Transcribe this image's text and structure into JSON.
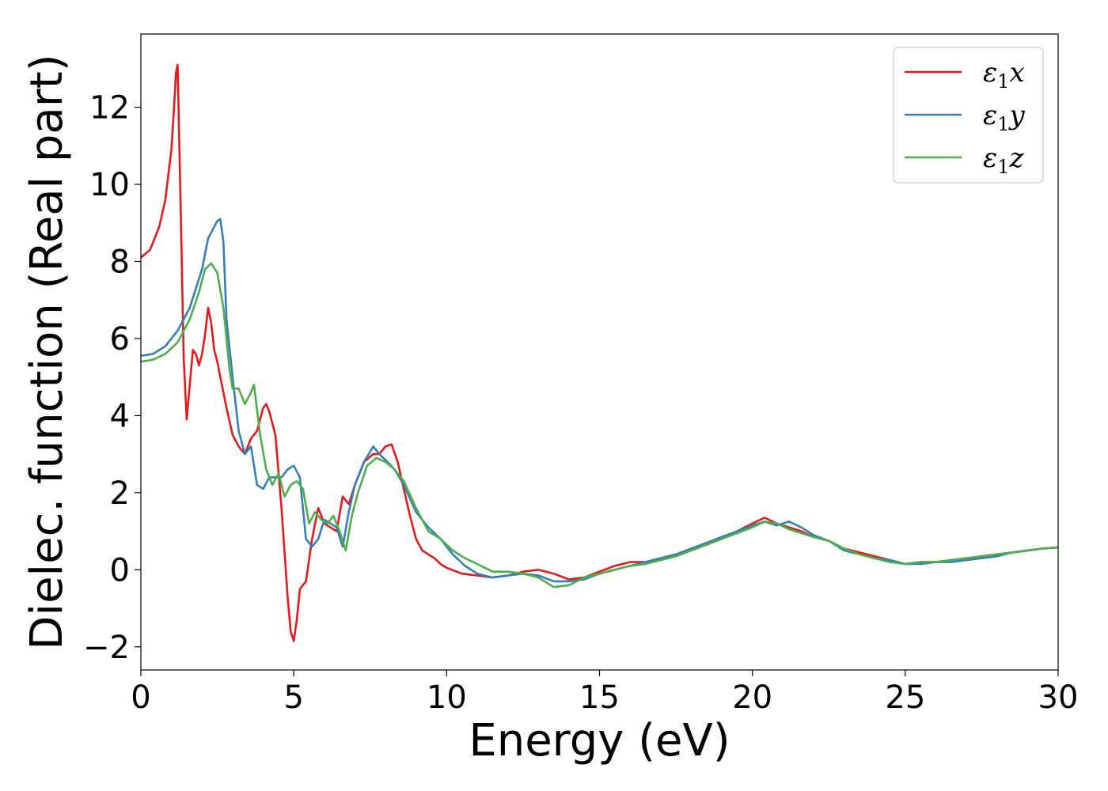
{
  "chart_data": {
    "type": "line",
    "xlabel": "Energy (eV)",
    "ylabel": "Dielec. function (Real part)",
    "xlim": [
      0,
      30
    ],
    "ylim": [
      -2.6,
      13.9
    ],
    "xticks": [
      0,
      5,
      10,
      15,
      20,
      25,
      30
    ],
    "xtick_labels": [
      "0",
      "5",
      "10",
      "15",
      "20",
      "25",
      "30"
    ],
    "yticks": [
      -2,
      0,
      2,
      4,
      6,
      8,
      10,
      12
    ],
    "ytick_labels": [
      "−2",
      "0",
      "2",
      "4",
      "6",
      "8",
      "10",
      "12"
    ],
    "grid": false,
    "legend_position": "top-right",
    "series": [
      {
        "name": "ε1x",
        "legend_symbol": "ε",
        "legend_sub": "1",
        "legend_suffix": "x",
        "color": "#e41a1c",
        "x": [
          0,
          0.3,
          0.6,
          0.8,
          1.0,
          1.1,
          1.15,
          1.2,
          1.3,
          1.4,
          1.5,
          1.6,
          1.7,
          1.8,
          1.9,
          2.0,
          2.1,
          2.2,
          2.3,
          2.4,
          2.5,
          2.6,
          2.8,
          3.0,
          3.2,
          3.4,
          3.6,
          3.8,
          4.0,
          4.1,
          4.2,
          4.4,
          4.6,
          4.8,
          4.9,
          5.0,
          5.1,
          5.2,
          5.4,
          5.6,
          5.8,
          6.0,
          6.2,
          6.4,
          6.6,
          6.8,
          7.0,
          7.3,
          7.6,
          7.8,
          8.0,
          8.2,
          8.4,
          8.6,
          8.8,
          9.0,
          9.2,
          9.4,
          9.6,
          9.8,
          10.0,
          10.5,
          11.0,
          11.5,
          12.0,
          12.5,
          13.0,
          13.5,
          14.0,
          14.5,
          15.0,
          15.5,
          16.0,
          16.5,
          17.0,
          17.5,
          18.0,
          18.5,
          19.0,
          19.5,
          20.0,
          20.4,
          20.8,
          21.2,
          21.6,
          22.0,
          22.5,
          23.0,
          23.5,
          24.0,
          24.5,
          25.0,
          25.5,
          26.0,
          26.5,
          27.0,
          27.5,
          28.0,
          28.5,
          29.0,
          29.5,
          30.0
        ],
        "y": [
          8.1,
          8.3,
          8.9,
          9.6,
          10.9,
          12.2,
          12.9,
          13.1,
          9.5,
          5.5,
          3.9,
          4.8,
          5.7,
          5.6,
          5.3,
          5.6,
          6.1,
          6.8,
          6.4,
          5.7,
          5.4,
          5.0,
          4.2,
          3.5,
          3.2,
          3.0,
          3.4,
          3.6,
          4.2,
          4.3,
          4.1,
          3.5,
          1.6,
          -0.7,
          -1.6,
          -1.85,
          -1.3,
          -0.5,
          -0.3,
          0.8,
          1.6,
          1.2,
          1.1,
          1.0,
          1.9,
          1.7,
          2.2,
          2.8,
          3.0,
          3.0,
          3.2,
          3.25,
          2.8,
          2.1,
          1.4,
          0.8,
          0.5,
          0.4,
          0.3,
          0.15,
          0.05,
          -0.1,
          -0.15,
          -0.2,
          -0.15,
          -0.05,
          0.0,
          -0.1,
          -0.25,
          -0.2,
          -0.05,
          0.1,
          0.2,
          0.2,
          0.3,
          0.4,
          0.5,
          0.65,
          0.8,
          1.0,
          1.2,
          1.35,
          1.2,
          1.1,
          1.0,
          0.85,
          0.75,
          0.55,
          0.45,
          0.35,
          0.25,
          0.15,
          0.2,
          0.2,
          0.25,
          0.3,
          0.35,
          0.4,
          0.45,
          0.5,
          0.55,
          0.58
        ]
      },
      {
        "name": "ε1y",
        "legend_symbol": "ε",
        "legend_sub": "1",
        "legend_suffix": "y",
        "color": "#377eb8",
        "x": [
          0,
          0.4,
          0.8,
          1.2,
          1.6,
          2.0,
          2.2,
          2.4,
          2.5,
          2.6,
          2.7,
          2.8,
          3.0,
          3.2,
          3.4,
          3.6,
          3.8,
          4.0,
          4.2,
          4.4,
          4.6,
          4.8,
          5.0,
          5.2,
          5.4,
          5.6,
          5.8,
          6.0,
          6.2,
          6.4,
          6.6,
          6.8,
          7.0,
          7.3,
          7.6,
          7.8,
          8.0,
          8.3,
          8.6,
          9.0,
          9.4,
          9.8,
          10.2,
          10.6,
          11.0,
          11.5,
          12.0,
          12.5,
          13.0,
          13.5,
          14.0,
          14.5,
          15.0,
          15.5,
          16.0,
          16.5,
          17.0,
          17.5,
          18.0,
          18.5,
          19.0,
          19.5,
          20.0,
          20.4,
          20.8,
          21.2,
          21.6,
          22.0,
          22.5,
          23.0,
          23.5,
          24.0,
          24.5,
          25.0,
          25.5,
          26.0,
          26.5,
          27.0,
          27.5,
          28.0,
          28.5,
          29.0,
          29.5,
          30.0
        ],
        "y": [
          5.55,
          5.6,
          5.8,
          6.2,
          6.8,
          7.8,
          8.6,
          8.9,
          9.05,
          9.1,
          8.5,
          6.5,
          5.0,
          3.6,
          3.0,
          3.2,
          2.2,
          2.1,
          2.4,
          2.4,
          2.4,
          2.6,
          2.7,
          2.4,
          0.8,
          0.6,
          0.8,
          1.3,
          1.2,
          1.1,
          0.6,
          1.5,
          2.2,
          2.8,
          3.2,
          3.0,
          2.85,
          2.6,
          2.2,
          1.5,
          1.1,
          0.8,
          0.4,
          0.1,
          -0.1,
          -0.2,
          -0.15,
          -0.1,
          -0.15,
          -0.3,
          -0.3,
          -0.25,
          -0.1,
          0.0,
          0.1,
          0.2,
          0.3,
          0.4,
          0.55,
          0.7,
          0.85,
          1.0,
          1.15,
          1.25,
          1.15,
          1.25,
          1.1,
          0.9,
          0.75,
          0.5,
          0.4,
          0.3,
          0.25,
          0.15,
          0.15,
          0.2,
          0.2,
          0.25,
          0.3,
          0.35,
          0.45,
          0.5,
          0.55,
          0.58
        ]
      },
      {
        "name": "ε1z",
        "legend_symbol": "ε",
        "legend_sub": "1",
        "legend_suffix": "z",
        "color": "#4daf4a",
        "x": [
          0,
          0.4,
          0.8,
          1.2,
          1.6,
          1.9,
          2.1,
          2.3,
          2.5,
          2.7,
          2.9,
          3.0,
          3.2,
          3.4,
          3.6,
          3.7,
          3.9,
          4.1,
          4.3,
          4.5,
          4.7,
          4.9,
          5.1,
          5.3,
          5.5,
          5.7,
          5.9,
          6.1,
          6.3,
          6.5,
          6.7,
          6.9,
          7.1,
          7.4,
          7.7,
          8.0,
          8.3,
          8.6,
          9.0,
          9.4,
          9.8,
          10.2,
          10.6,
          11.0,
          11.5,
          12.0,
          12.5,
          13.0,
          13.5,
          14.0,
          14.5,
          15.0,
          15.5,
          16.0,
          16.5,
          17.0,
          17.5,
          18.0,
          18.5,
          19.0,
          19.5,
          20.0,
          20.4,
          20.8,
          21.2,
          21.6,
          22.0,
          22.5,
          23.0,
          23.5,
          24.0,
          24.5,
          25.0,
          25.5,
          26.0,
          26.5,
          27.0,
          27.5,
          28.0,
          28.5,
          29.0,
          29.5,
          30.0
        ],
        "y": [
          5.4,
          5.45,
          5.6,
          5.9,
          6.5,
          7.2,
          7.8,
          7.95,
          7.7,
          6.8,
          5.2,
          4.7,
          4.7,
          4.3,
          4.6,
          4.8,
          3.5,
          2.6,
          2.2,
          2.5,
          1.9,
          2.2,
          2.3,
          2.1,
          1.2,
          1.5,
          1.3,
          1.2,
          1.4,
          1.0,
          0.5,
          1.4,
          2.0,
          2.7,
          2.9,
          2.8,
          2.6,
          2.3,
          1.6,
          1.0,
          0.8,
          0.5,
          0.3,
          0.15,
          -0.05,
          -0.05,
          -0.1,
          -0.2,
          -0.45,
          -0.4,
          -0.2,
          -0.1,
          0.0,
          0.1,
          0.15,
          0.25,
          0.35,
          0.5,
          0.65,
          0.8,
          0.95,
          1.1,
          1.25,
          1.2,
          1.05,
          0.95,
          0.85,
          0.75,
          0.55,
          0.4,
          0.3,
          0.2,
          0.15,
          0.2,
          0.2,
          0.25,
          0.3,
          0.35,
          0.4,
          0.45,
          0.5,
          0.55,
          0.58
        ]
      }
    ]
  }
}
